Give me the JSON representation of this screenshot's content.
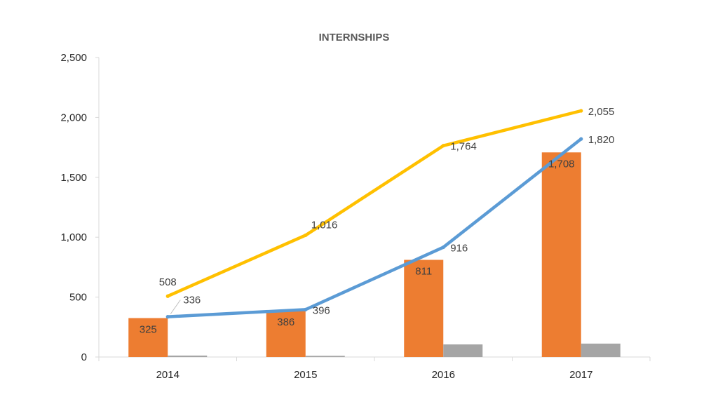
{
  "chart_data": {
    "type": "bar",
    "title": "INTERNSHIPS",
    "xlabel": "",
    "ylabel": "",
    "categories": [
      "2014",
      "2015",
      "2016",
      "2017"
    ],
    "ylim": [
      0,
      2500
    ],
    "yticks": [
      0,
      500,
      1000,
      1500,
      2000,
      2500
    ],
    "ytick_labels": [
      "0",
      "500",
      "1,000",
      "1,500",
      "2,000",
      "2,500"
    ],
    "grid": false,
    "legend": "none",
    "bar_series": [
      {
        "values": [
          325,
          386,
          811,
          1708
        ],
        "labels": [
          "325",
          "386",
          "811",
          "1,708"
        ],
        "color": "#ED7D31"
      },
      {
        "values": [
          12,
          10,
          105,
          112
        ],
        "color": "#A5A5A5"
      }
    ],
    "line_series": [
      {
        "values": [
          508,
          1016,
          1764,
          2055
        ],
        "labels": [
          "508",
          "1,016",
          "1,764",
          "2,055"
        ],
        "color": "#FFC000"
      },
      {
        "values": [
          336,
          396,
          916,
          1820
        ],
        "labels": [
          "336",
          "396",
          "916",
          "1,820"
        ],
        "color": "#5B9BD5"
      }
    ]
  }
}
